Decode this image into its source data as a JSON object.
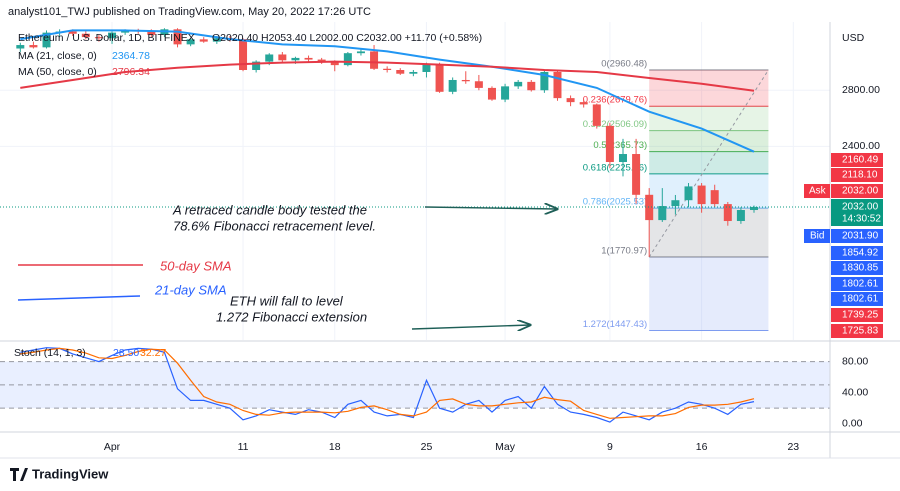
{
  "header": {
    "publisher": "analyst101_TWJ published on TradingView.com, May 20, 2022 17:26 UTC",
    "brand": "TradingView"
  },
  "chart_data": [
    {
      "type": "candlestick",
      "symbol": "Ethereum / U.S. Dollar, 1D, BITFINEX",
      "ohlc_text": "O2020.40 H2053.40 L2002.00 C2032.00 +11.70 (+0.58%)",
      "currency": "USD",
      "up_color": "#26a69a",
      "down_color": "#ef5350",
      "x": [
        84,
        85,
        86,
        87,
        88,
        89,
        90,
        91,
        92,
        93,
        94,
        95,
        96,
        97,
        98,
        99,
        100,
        101,
        102,
        103,
        104,
        105,
        106,
        107,
        108,
        109,
        110,
        111,
        112,
        113,
        114,
        115,
        116,
        117,
        118,
        119,
        120,
        121,
        122,
        123,
        124,
        125,
        126,
        127,
        128,
        129,
        130,
        131,
        132,
        133,
        134,
        135,
        136,
        137,
        138,
        139,
        140
      ],
      "open": [
        3140,
        3170,
        3150,
        3280,
        3290,
        3270,
        3240,
        3230,
        3280,
        3300,
        3290,
        3260,
        3310,
        3176,
        3220,
        3200,
        3230,
        3222,
        2960,
        3029,
        3089,
        3040,
        3060,
        3046,
        3029,
        3000,
        3100,
        3115,
        2970,
        2960,
        2930,
        2944,
        3004,
        2788,
        2880,
        2870,
        2818,
        2729,
        2830,
        2865,
        2800,
        2944,
        2740,
        2710,
        2693,
        2539,
        2299,
        2350,
        2101,
        1960,
        2037,
        2070,
        2155,
        2128,
        2048,
        1955,
        2015
      ],
      "high": [
        3190,
        3200,
        3300,
        3310,
        3310,
        3300,
        3260,
        3290,
        3310,
        3315,
        3310,
        3320,
        3320,
        3230,
        3240,
        3250,
        3250,
        3230,
        3040,
        3100,
        3110,
        3070,
        3080,
        3060,
        3040,
        3110,
        3140,
        3170,
        2990,
        2975,
        2960,
        3020,
        3020,
        2900,
        2950,
        2920,
        2830,
        2850,
        2880,
        2880,
        2960,
        2955,
        2760,
        2730,
        2700,
        2560,
        2450,
        2450,
        2140,
        2140,
        2100,
        2170,
        2170,
        2160,
        2060,
        2030,
        2040
      ],
      "low": [
        3110,
        3140,
        3140,
        3240,
        3250,
        3220,
        3200,
        3180,
        3260,
        3270,
        3240,
        3240,
        3150,
        3160,
        3190,
        3180,
        3200,
        2950,
        2940,
        3000,
        3020,
        3010,
        3030,
        3010,
        2950,
        2990,
        3080,
        2960,
        2940,
        2920,
        2910,
        2900,
        2780,
        2770,
        2850,
        2800,
        2720,
        2710,
        2810,
        2790,
        2780,
        2720,
        2680,
        2670,
        2520,
        2260,
        2210,
        2050,
        1771,
        1950,
        1990,
        2030,
        2000,
        2030,
        1930,
        1940,
        2000
      ],
      "close": [
        3170,
        3150,
        3280,
        3290,
        3270,
        3240,
        3230,
        3280,
        3300,
        3290,
        3260,
        3310,
        3176,
        3220,
        3200,
        3230,
        3222,
        2960,
        3029,
        3089,
        3040,
        3060,
        3046,
        3029,
        3000,
        3100,
        3115,
        2970,
        2960,
        2930,
        2944,
        3004,
        2788,
        2880,
        2870,
        2818,
        2729,
        2830,
        2865,
        2800,
        2944,
        2740,
        2710,
        2693,
        2539,
        2299,
        2350,
        2101,
        1960,
        2037,
        2070,
        2150,
        2048,
        2048,
        1955,
        2015,
        2032
      ],
      "xlim": [
        82.45,
        145.8
      ],
      "xticks": [
        {
          "value": 91,
          "label": "Apr"
        },
        {
          "value": 101,
          "label": "11"
        },
        {
          "value": 108,
          "label": "18"
        },
        {
          "value": 115,
          "label": "25"
        },
        {
          "value": 121,
          "label": "May"
        },
        {
          "value": 129,
          "label": "9"
        },
        {
          "value": 136,
          "label": "16"
        },
        {
          "value": 143,
          "label": "23"
        }
      ],
      "ylim": [
        1410,
        3322
      ],
      "log_scale": true,
      "yticks": [
        {
          "value": 2800,
          "label": "2800.00"
        },
        {
          "value": 2400,
          "label": "2400.00"
        }
      ],
      "grid": true,
      "overlays": [
        {
          "name": "MA (21, close, 0)",
          "value_label": "2364.78",
          "color": "#2196f3",
          "x": [
            84,
            88,
            92,
            96,
            100,
            104,
            108,
            112,
            116,
            120,
            124,
            128,
            132,
            136,
            140
          ],
          "values": [
            3222,
            3300,
            3300,
            3289,
            3222,
            3176,
            3159,
            3115,
            3046,
            2987,
            2920,
            2818,
            2640,
            2520,
            2364.78
          ]
        },
        {
          "name": "MA (50, close, 0)",
          "value_label": "2796.34",
          "color": "#e53946",
          "x": [
            84,
            88,
            92,
            96,
            100,
            104,
            108,
            112,
            116,
            120,
            124,
            128,
            132,
            136,
            140
          ],
          "values": [
            2818,
            2880,
            2944,
            2979,
            3004,
            3021,
            3029,
            3021,
            3004,
            2987,
            2960,
            2944,
            2896,
            2850,
            2796.34
          ]
        }
      ],
      "fibonacci": {
        "x_range": [
          132,
          141.1
        ],
        "levels": [
          {
            "price": 2960.48,
            "label": "0(2960.48)",
            "color": "#787b86"
          },
          {
            "price": 2679.76,
            "label": "0.236(2679.76)",
            "color": "#f23645"
          },
          {
            "price": 2506.09,
            "label": "0.382(2506.09)",
            "color": "#81c784"
          },
          {
            "price": 2365.73,
            "label": "0.5(2365.73)",
            "color": "#4caf50"
          },
          {
            "price": 2225.36,
            "label": "0.618(2225.36)",
            "color": "#089981"
          },
          {
            "price": 2025.53,
            "label": "0.786(2025.53)",
            "color": "#64b5f6"
          },
          {
            "price": 1770.97,
            "label": "1(1770.97)",
            "color": "#787b86"
          },
          {
            "price": 1447.43,
            "label": "1.272(1447.43)",
            "color": "#7e9cf0"
          }
        ]
      },
      "price_tags": [
        "2160.49",
        "2118.10",
        "Ask",
        "2032.00",
        "2032.00",
        "14:30:52",
        "Bid",
        "2031.90",
        "1854.92",
        "1830.85",
        "1802.61",
        "1802.61",
        "1739.25",
        "1725.83"
      ],
      "annotations": [
        "A retraced candle body tested the",
        "78.6% Fibonacci retracement level.",
        "50-day SMA",
        "21-day SMA",
        "ETH will fall to level",
        "1.272 Fibonacci extension"
      ]
    },
    {
      "type": "line",
      "title": "Stoch (14, 1, 3)",
      "x": [
        84,
        85,
        86,
        87,
        88,
        89,
        90,
        91,
        92,
        93,
        94,
        95,
        96,
        97,
        98,
        99,
        100,
        101,
        102,
        103,
        104,
        105,
        106,
        107,
        108,
        109,
        110,
        111,
        112,
        113,
        114,
        115,
        116,
        117,
        118,
        119,
        120,
        121,
        122,
        123,
        124,
        125,
        126,
        127,
        128,
        129,
        130,
        131,
        132,
        133,
        134,
        135,
        136,
        137,
        138,
        139,
        140
      ],
      "series": [
        {
          "name": "%K",
          "color": "#2962ff",
          "value_label": "28.50",
          "values": [
            92,
            95,
            98,
            97,
            90,
            85,
            80,
            88,
            95,
            97,
            96,
            92,
            45,
            30,
            30,
            25,
            20,
            5,
            10,
            18,
            15,
            12,
            18,
            15,
            8,
            25,
            30,
            15,
            10,
            12,
            8,
            56,
            20,
            15,
            25,
            30,
            15,
            30,
            35,
            20,
            48,
            25,
            15,
            12,
            8,
            2,
            15,
            10,
            5,
            15,
            20,
            28,
            25,
            20,
            12,
            25,
            28.5
          ]
        },
        {
          "name": "%D",
          "color": "#ff6d00",
          "value_label": "32.27",
          "values": [
            90,
            92,
            95,
            97,
            95,
            91,
            85,
            84,
            88,
            93,
            96,
            95,
            78,
            56,
            35,
            28,
            25,
            17,
            12,
            11,
            14,
            15,
            15,
            15,
            14,
            16,
            21,
            23,
            18,
            12,
            10,
            15,
            30,
            32,
            25,
            23,
            23,
            25,
            27,
            28,
            34,
            31,
            29,
            17,
            12,
            7,
            8,
            9,
            10,
            10,
            13,
            21,
            24,
            24,
            25,
            28,
            32.27
          ]
        }
      ],
      "xlim": [
        82.45,
        145.8
      ],
      "ylim": [
        -10.7,
        105.3
      ],
      "yticks": [
        {
          "value": 80,
          "label": "80.00"
        },
        {
          "value": 40,
          "label": "40.00"
        },
        {
          "value": 0,
          "label": "0.00"
        }
      ],
      "band": [
        20,
        80
      ],
      "levels": [
        20,
        50,
        80
      ]
    }
  ]
}
